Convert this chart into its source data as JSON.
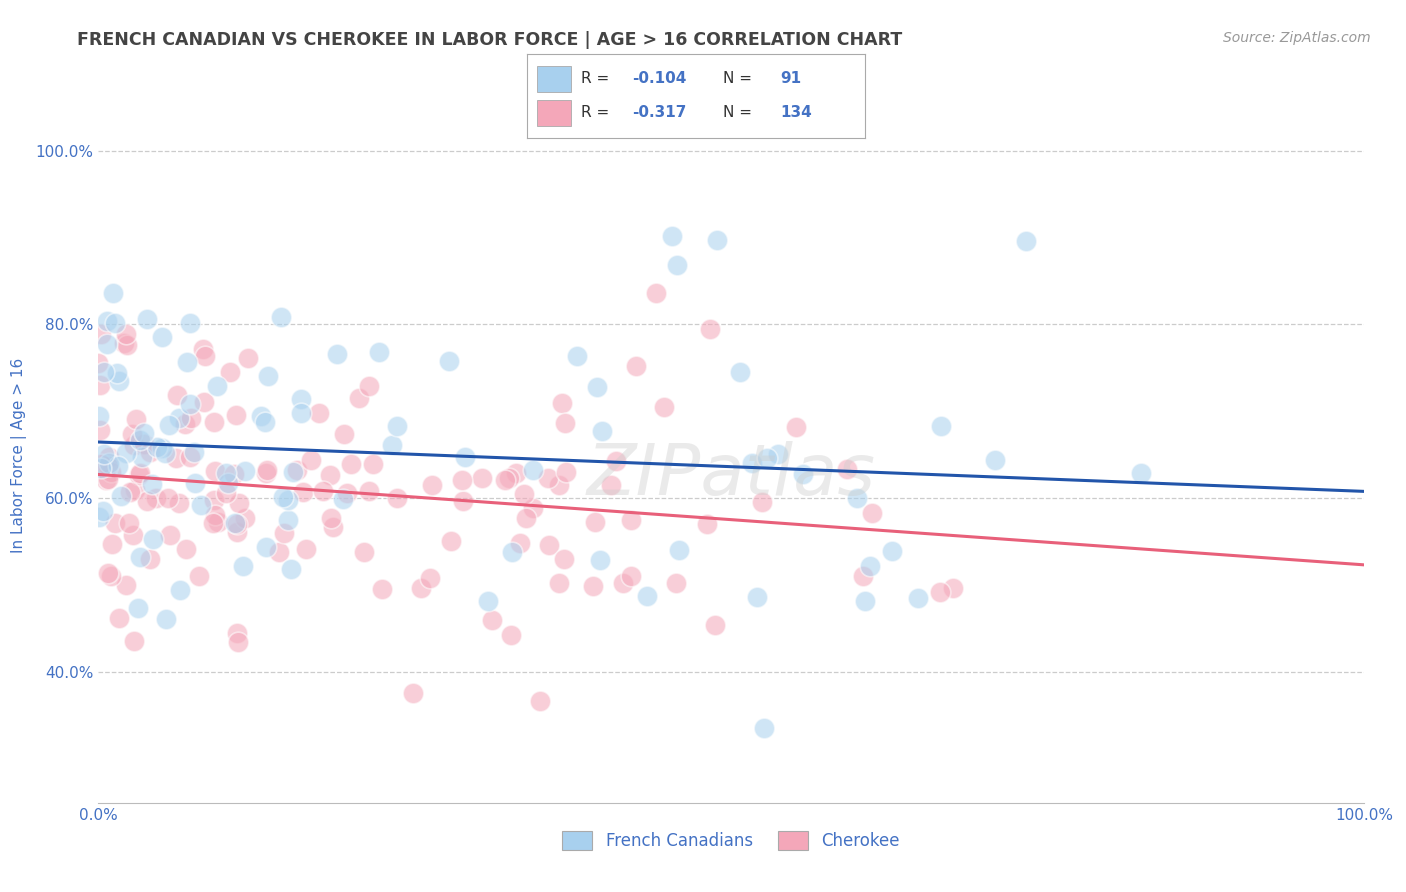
{
  "title": "FRENCH CANADIAN VS CHEROKEE IN LABOR FORCE | AGE > 16 CORRELATION CHART",
  "source": "Source: ZipAtlas.com",
  "ylabel": "In Labor Force | Age > 16",
  "xlim": [
    0.0,
    1.0
  ],
  "ylim": [
    0.25,
    1.05
  ],
  "yticks": [
    0.4,
    0.6,
    0.8,
    1.0
  ],
  "ytick_labels": [
    "40.0%",
    "60.0%",
    "80.0%",
    "100.0%"
  ],
  "xticks": [
    0.0,
    0.2,
    0.4,
    0.6,
    0.8,
    1.0
  ],
  "xtick_labels": [
    "0.0%",
    "",
    "",
    "",
    "",
    "100.0%"
  ],
  "french_R": -0.104,
  "french_N": 91,
  "cherokee_R": -0.317,
  "cherokee_N": 134,
  "french_color": "#a8d0ee",
  "cherokee_color": "#f4a7b9",
  "french_line_color": "#2255aa",
  "cherokee_line_color": "#e8607a",
  "background_color": "#ffffff",
  "grid_color": "#cccccc",
  "title_color": "#444444",
  "axis_label_color": "#4472c4",
  "legend_text_color": "#4472c4",
  "legend_box_color": "#4472c4",
  "watermark": "ZIPatlas",
  "french_line_intercept": 0.653,
  "french_line_slope": -0.048,
  "cherokee_line_intercept": 0.628,
  "cherokee_line_slope": -0.145
}
